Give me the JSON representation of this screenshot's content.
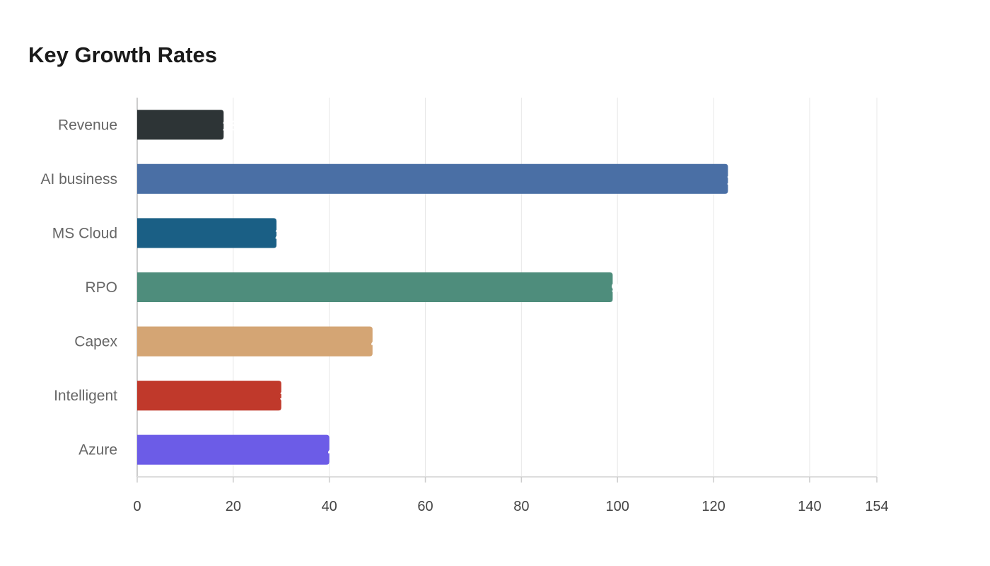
{
  "chart_data": {
    "type": "bar",
    "orientation": "horizontal",
    "title": "Key Growth Rates",
    "xlabel": "",
    "ylabel": "",
    "categories": [
      "Revenue",
      "AI business",
      "MS Cloud",
      "RPO",
      "Capex",
      "Intelligent",
      "Azure"
    ],
    "values": [
      18,
      123,
      29,
      99,
      49,
      30,
      40
    ],
    "value_labels": [
      "18",
      "123",
      "29",
      "99",
      "49",
      "30",
      "40"
    ],
    "colors": [
      "#2d3436",
      "#4a6fa5",
      "#1a5f85",
      "#4e8d7c",
      "#d4a574",
      "#c0392b",
      "#6c5ce7"
    ],
    "xlim": [
      0,
      154
    ],
    "x_ticks": [
      0,
      20,
      40,
      60,
      80,
      100,
      120,
      140,
      154
    ],
    "grid": true,
    "legend": "none"
  }
}
